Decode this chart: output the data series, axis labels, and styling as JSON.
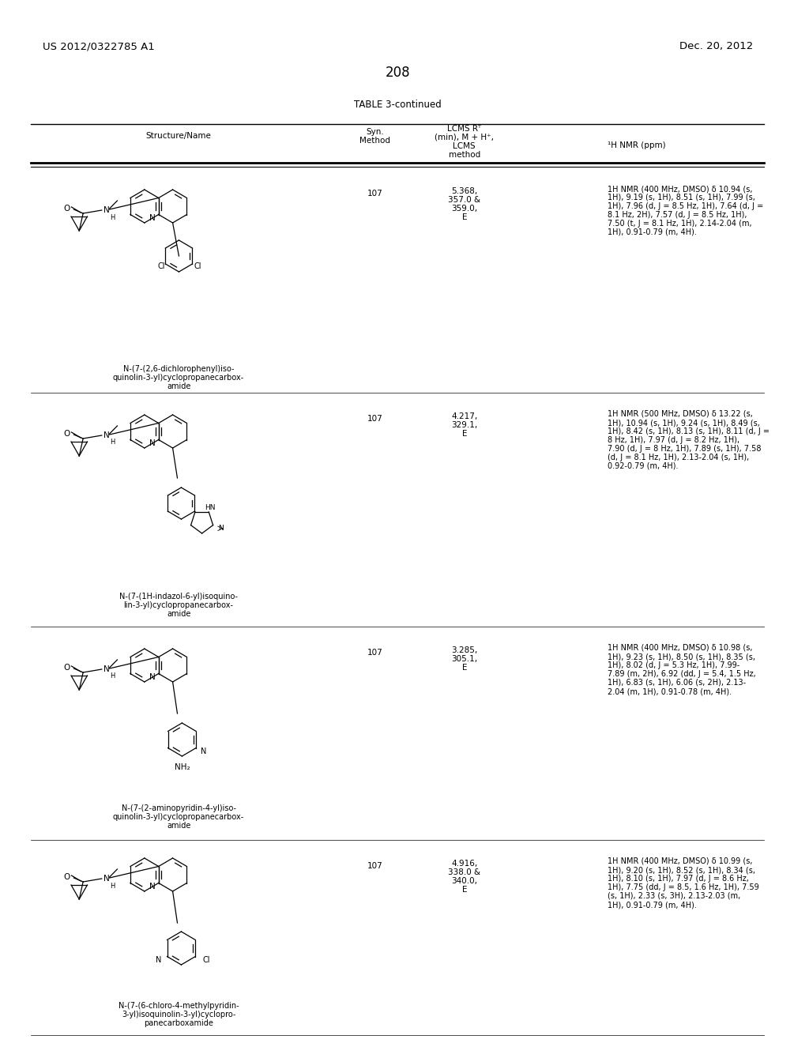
{
  "page_number": "208",
  "patent_number": "US 2012/0322785 A1",
  "patent_date": "Dec. 20, 2012",
  "table_title": "TABLE 3-continued",
  "bg_color": "#ffffff",
  "rows": [
    {
      "name_lines": [
        "N-(7-(2,6-dichlorophenyl)iso-",
        "quinolin-3-yl)cyclopropanecarbox-",
        "amide"
      ],
      "syn_method": "107",
      "lcms_data": [
        "5.368,",
        "357.0 &",
        "359.0,",
        "E"
      ],
      "nmr_lines": [
        "1H NMR (400 MHz, DMSO) δ 10.94 (s,",
        "1H), 9.19 (s, 1H), 8.51 (s, 1H), 7.99 (s,",
        "1H), 7.96 (d, J = 8.5 Hz, 1H), 7.64 (d, J =",
        "8.1 Hz, 2H), 7.57 (d, J = 8.5 Hz, 1H),",
        "7.50 (t, J = 8.1 Hz, 1H), 2.14-2.04 (m,",
        "1H), 0.91-0.79 (m, 4H)."
      ]
    },
    {
      "name_lines": [
        "N-(7-(1H-indazol-6-yl)isoquino-",
        "lin-3-yl)cyclopropanecarbox-",
        "amide"
      ],
      "syn_method": "107",
      "lcms_data": [
        "4.217,",
        "329.1,",
        "E"
      ],
      "nmr_lines": [
        "1H NMR (500 MHz, DMSO) δ 13.22 (s,",
        "1H), 10.94 (s, 1H), 9.24 (s, 1H), 8.49 (s,",
        "1H), 8.42 (s, 1H), 8.13 (s, 1H), 8.11 (d, J =",
        "8 Hz, 1H), 7.97 (d, J = 8.2 Hz, 1H),",
        "7.90 (d, J = 8 Hz, 1H), 7.89 (s, 1H), 7.58",
        "(d, J = 8.1 Hz, 1H), 2.13-2.04 (s, 1H),",
        "0.92-0.79 (m, 4H)."
      ]
    },
    {
      "name_lines": [
        "N-(7-(2-aminopyridin-4-yl)iso-",
        "quinolin-3-yl)cyclopropanecarbox-",
        "amide"
      ],
      "syn_method": "107",
      "lcms_data": [
        "3.285,",
        "305.1,",
        "E"
      ],
      "nmr_lines": [
        "1H NMR (400 MHz, DMSO) δ 10.98 (s,",
        "1H), 9.23 (s, 1H), 8.50 (s, 1H), 8.35 (s,",
        "1H), 8.02 (d, J = 5.3 Hz, 1H), 7.99-",
        "7.89 (m, 2H), 6.92 (dd, J = 5.4, 1.5 Hz,",
        "1H), 6.83 (s, 1H), 6.06 (s, 2H), 2.13-",
        "2.04 (m, 1H), 0.91-0.78 (m, 4H)."
      ]
    },
    {
      "name_lines": [
        "N-(7-(6-chloro-4-methylpyridin-",
        "3-yl)isoquinolin-3-yl)cyclopro-",
        "panecarboxamide"
      ],
      "syn_method": "107",
      "lcms_data": [
        "4.916,",
        "338.0 &",
        "340.0,",
        "E"
      ],
      "nmr_lines": [
        "1H NMR (400 MHz, DMSO) δ 10.99 (s,",
        "1H), 9.20 (s, 1H), 8.52 (s, 1H), 8.34 (s,",
        "1H), 8.10 (s, 1H), 7.97 (d, J = 8.6 Hz,",
        "1H), 7.75 (dd, J = 8.5, 1.6 Hz, 1H), 7.59",
        "(s, 1H), 2.33 (s, 3H), 2.13-2.03 (m,",
        "1H), 0.91-0.79 (m, 4H)."
      ]
    }
  ]
}
